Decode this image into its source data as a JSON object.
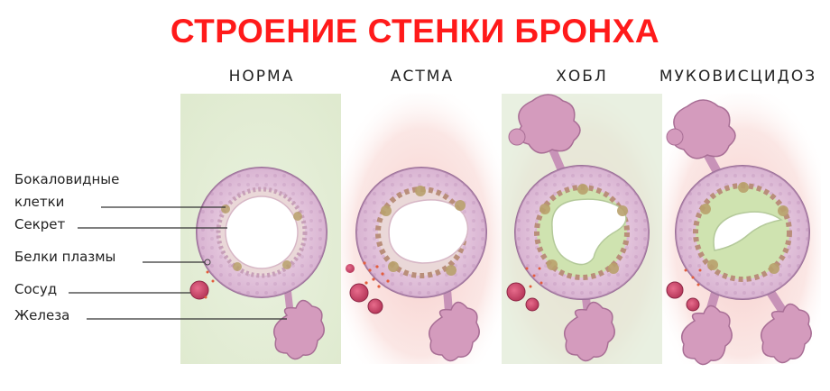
{
  "title": "СТРОЕНИЕ СТЕНКИ БРОНХА",
  "columns": [
    {
      "label": "НОРМА"
    },
    {
      "label": "АСТМА"
    },
    {
      "label": "ХОБЛ"
    },
    {
      "label": "МУКОВИСЦИДОЗ"
    }
  ],
  "labels": {
    "goblet_line1": "Бокаловидные",
    "goblet_line2": "клетки",
    "secretion": "Секрет",
    "plasma_proteins": "Белки плазмы",
    "vessel": "Сосуд",
    "gland": "Железа"
  },
  "colors": {
    "title": "#ff1a1a",
    "wall": "#d9b7d3",
    "wall_border": "#9a6f98",
    "normal_background": "#e4eed8",
    "inflamed_background": "#f8d6d3",
    "mucus": "#cfe3b0",
    "vessel": "#c9486b",
    "gland": "#c98aa8"
  }
}
